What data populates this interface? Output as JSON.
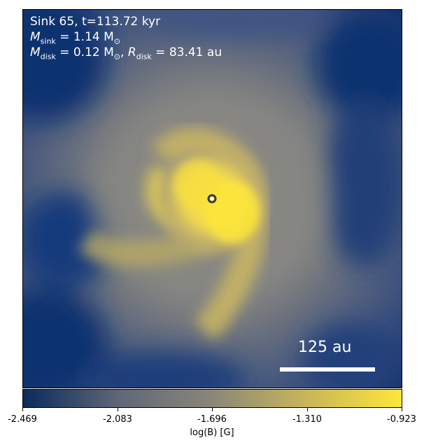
{
  "annotation": {
    "sink_line": "Sink 65, t=113.72 kyr",
    "m_sink_symbol": "M",
    "m_sink_sub": "sink",
    "m_sink_value": " = 1.14 M",
    "m_sink_unit_sub": "⊙",
    "m_disk_symbol": "M",
    "m_disk_sub": "disk",
    "m_disk_value": " = 0.12 M",
    "m_disk_unit_sub": "⊙",
    "r_disk_sep": ", ",
    "r_disk_symbol": "R",
    "r_disk_sub": "disk",
    "r_disk_value": " = 83.41 au"
  },
  "scale_bar": {
    "label": "125 au"
  },
  "colorbar": {
    "label": "log(B) [G]",
    "ticks": [
      "-2.469",
      "-2.083",
      "-1.696",
      "-1.310",
      "-0.923"
    ],
    "colors": [
      "#0b2a5b",
      "#5f6677",
      "#8a8778",
      "#c8b65a",
      "#fde63a"
    ]
  },
  "map": {
    "low_color": "#0f3170",
    "mid_color": "#7c7c7c",
    "high_color": "#fde63a",
    "sink_marker_color": "#3a3a3a"
  }
}
